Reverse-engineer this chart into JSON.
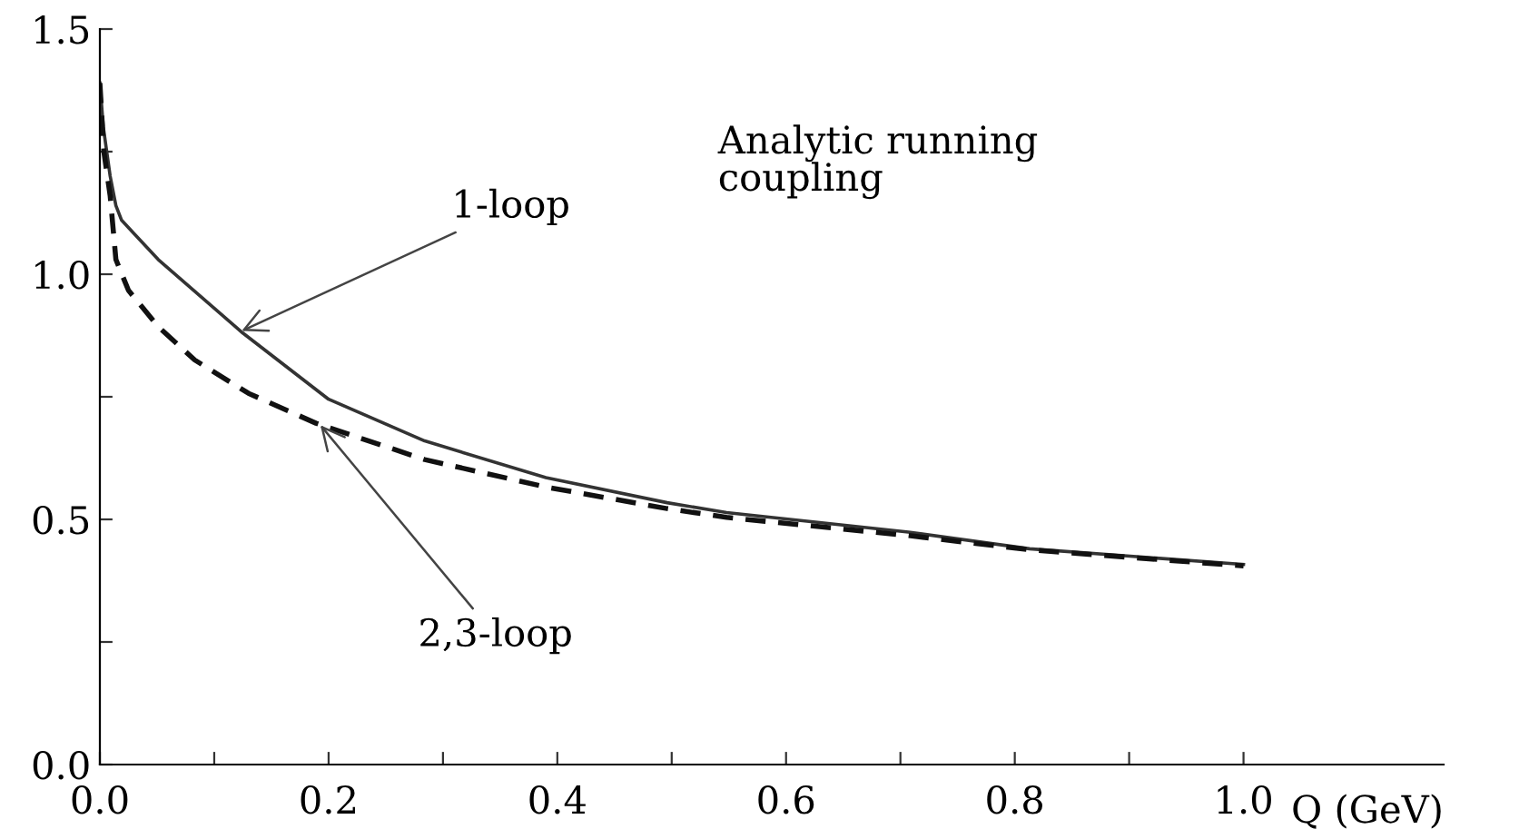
{
  "chart_data": {
    "type": "line",
    "xlabel": "Q (GeV)",
    "x": [
      0,
      0.003,
      0.009,
      0.014,
      0.019,
      0.051,
      0.125,
      0.2,
      0.284,
      0.39,
      0.496,
      0.548,
      0.707,
      0.813,
      1.0
    ],
    "series": [
      {
        "color": "#333333",
        "line_style": "solid",
        "values": [
          1.39,
          1.3,
          1.2,
          1.14,
          1.11,
          1.03,
          0.88,
          0.745,
          0.66,
          0.585,
          0.534,
          0.514,
          0.474,
          0.44,
          0.408
        ]
      },
      {
        "color": "#111111",
        "line_style": "dashed",
        "x": [
          0,
          0.0035,
          0.009,
          0.014,
          0.025,
          0.051,
          0.083,
          0.13,
          0.189,
          0.284,
          0.39,
          0.496,
          0.548,
          0.707,
          0.813,
          1.0
        ],
        "values": [
          1.39,
          1.25,
          1.16,
          1.03,
          0.967,
          0.893,
          0.825,
          0.757,
          0.696,
          0.622,
          0.566,
          0.522,
          0.504,
          0.467,
          0.438,
          0.405
        ]
      }
    ],
    "xlim": [
      0,
      1.175
    ],
    "ylim": [
      0,
      1.5
    ],
    "xticks": [
      {
        "value": 0,
        "label": "0.0"
      },
      {
        "value": 0.1,
        "label": null
      },
      {
        "value": 0.2,
        "label": "0.2"
      },
      {
        "value": 0.3,
        "label": null
      },
      {
        "value": 0.4,
        "label": "0.4"
      },
      {
        "value": 0.5,
        "label": null
      },
      {
        "value": 0.6,
        "label": "0.6"
      },
      {
        "value": 0.7,
        "label": null
      },
      {
        "value": 0.8,
        "label": "0.8"
      },
      {
        "value": 0.9,
        "label": null
      },
      {
        "value": 1.0,
        "label": "1.0"
      }
    ],
    "yticks": [
      {
        "value": 0,
        "label": "0.0"
      },
      {
        "value": 0.25,
        "label": null
      },
      {
        "value": 0.5,
        "label": "0.5"
      },
      {
        "value": 0.75,
        "label": null
      },
      {
        "value": 1.0,
        "label": "1.0"
      },
      {
        "value": 1.25,
        "label": null
      },
      {
        "value": 1.5,
        "label": "1.5"
      }
    ],
    "annotations": [
      "Analytic running\ncoupling",
      {
        "text": "1-loop",
        "x": 0.12,
        "y": 0.88
      },
      {
        "text": "2,3-loop",
        "x": 0.19,
        "y": 0.7
      }
    ],
    "grid": false,
    "legend": false
  }
}
